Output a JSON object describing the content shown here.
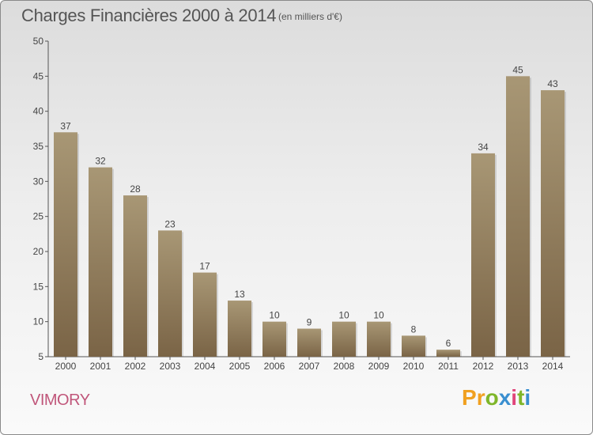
{
  "header": {
    "title": "Charges Financières 2000 à 2014",
    "subtitle": "(en milliers d'€)"
  },
  "footer": {
    "commune": "VIMORY",
    "brand": "Proxiti",
    "brand_colors": [
      "#f0a020",
      "#f0a020",
      "#7fb62a",
      "#3a8fd0",
      "#e0457b",
      "#7fb62a",
      "#3a8fd0"
    ]
  },
  "chart_data": {
    "type": "bar",
    "categories": [
      "2000",
      "2001",
      "2002",
      "2003",
      "2004",
      "2005",
      "2006",
      "2007",
      "2008",
      "2009",
      "2010",
      "2011",
      "2012",
      "2013",
      "2014"
    ],
    "values": [
      37,
      32,
      28,
      23,
      17,
      13,
      10,
      9,
      10,
      10,
      8,
      6,
      34,
      45,
      43
    ],
    "ylim": [
      5,
      50
    ],
    "yticks": [
      5,
      10,
      15,
      20,
      25,
      30,
      35,
      40,
      45,
      50
    ],
    "grid": false,
    "bar_color_top": "#a89775",
    "bar_color_bottom": "#7a6446"
  }
}
